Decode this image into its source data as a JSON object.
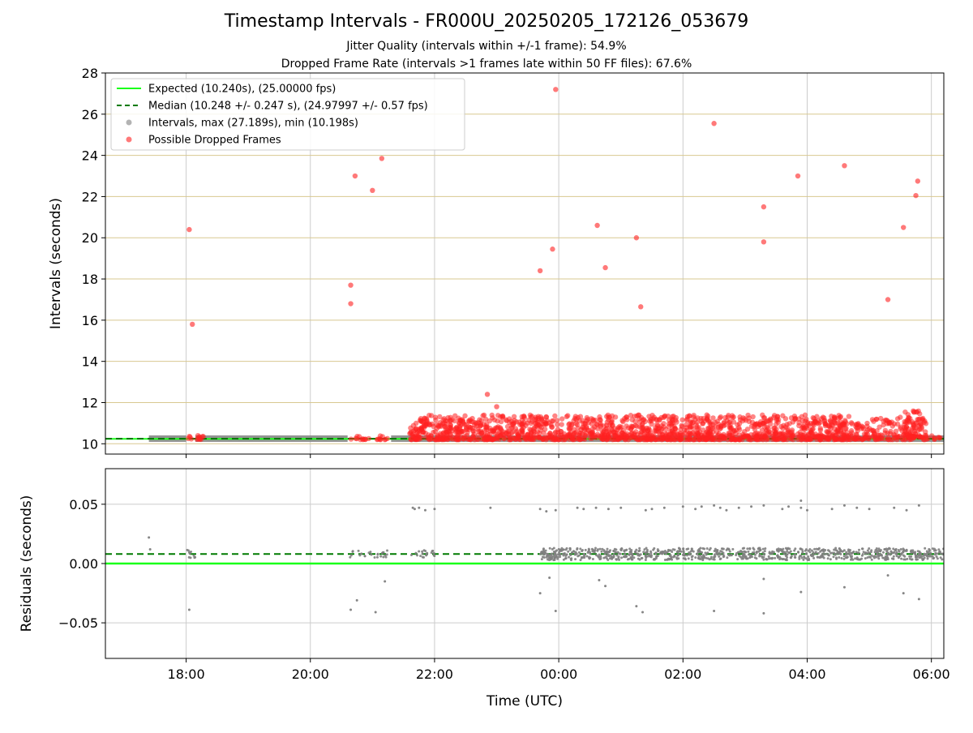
{
  "title": "Timestamp Intervals - FR000U_20250205_172126_053679",
  "subtitles": [
    "Jitter Quality (intervals within +/-1 frame): 54.9%",
    "Dropped Frame Rate (intervals >1 frames late within 50 FF files): 67.6%"
  ],
  "colors": {
    "expected": "#1aff1a",
    "median": "#007a00",
    "intervals": "#808080",
    "dropped": "#ff2020",
    "hgrid_top": "#d8c890",
    "grid": "#cccccc"
  },
  "chart_data": [
    {
      "type": "scatter",
      "ylabel": "Intervals (seconds)",
      "ylim": [
        9.5,
        28
      ],
      "yticks": [
        10,
        12,
        14,
        16,
        18,
        20,
        22,
        24,
        26,
        28
      ],
      "xlim_hours": [
        16.7,
        30.2
      ],
      "grid": true,
      "legend_position": "top-left",
      "legend": [
        "Expected (10.240s), (25.00000 fps)",
        "Median (10.248 +/- 0.247 s), (24.97997 +/- 0.57 fps)",
        "Intervals, max (27.189s), min (10.198s)",
        "Possible Dropped Frames"
      ],
      "expected_value": 10.24,
      "median_value": 10.248,
      "series": [
        {
          "name": "Intervals, max (27.189s), min (10.198s)",
          "kind": "baseline_band",
          "bands": [
            [
              17.4,
              18.0,
              10.25
            ],
            [
              18.15,
              20.6,
              10.25
            ],
            [
              21.3,
              30.2,
              10.25
            ]
          ]
        },
        {
          "name": "Possible Dropped Frames",
          "kind": "outliers",
          "points": [
            [
              18.05,
              20.4
            ],
            [
              18.1,
              15.8
            ],
            [
              20.65,
              17.7
            ],
            [
              20.65,
              16.8
            ],
            [
              20.72,
              23.0
            ],
            [
              21.0,
              22.3
            ],
            [
              21.15,
              23.85
            ],
            [
              22.85,
              12.4
            ],
            [
              23.0,
              11.8
            ],
            [
              23.7,
              18.4
            ],
            [
              23.9,
              19.45
            ],
            [
              23.95,
              27.2
            ],
            [
              24.62,
              20.6
            ],
            [
              24.75,
              18.55
            ],
            [
              25.25,
              20.0
            ],
            [
              25.32,
              16.65
            ],
            [
              26.5,
              25.55
            ],
            [
              27.3,
              21.5
            ],
            [
              27.3,
              19.8
            ],
            [
              27.85,
              23.0
            ],
            [
              28.6,
              23.5
            ],
            [
              29.3,
              17.0
            ],
            [
              29.55,
              20.5
            ],
            [
              29.75,
              22.05
            ],
            [
              29.78,
              22.75
            ]
          ],
          "dense_regions": [
            [
              18.0,
              18.3,
              10.2,
              10.4,
              14
            ],
            [
              20.6,
              20.95,
              10.2,
              10.4,
              12
            ],
            [
              21.0,
              21.3,
              10.2,
              10.4,
              10
            ],
            [
              21.6,
              28.75,
              10.2,
              11.4,
              1500
            ],
            [
              28.75,
              29.0,
              10.2,
              11.0,
              40
            ],
            [
              29.0,
              29.95,
              10.2,
              11.3,
              110
            ],
            [
              29.55,
              29.85,
              10.3,
              11.6,
              60
            ],
            [
              29.85,
              30.15,
              10.2,
              10.4,
              12
            ]
          ]
        }
      ]
    },
    {
      "type": "scatter",
      "xlabel": "Time (UTC)",
      "ylabel": "Residuals (seconds)",
      "ylim": [
        -0.08,
        0.08
      ],
      "yticks": [
        0.05,
        0.0,
        -0.05
      ],
      "ytick_labels": [
        "0.05",
        "0.00",
        "−0.05"
      ],
      "xticks_hours": [
        18,
        20,
        22,
        24,
        26,
        28,
        30
      ],
      "xtick_labels": [
        "18:00",
        "20:00",
        "22:00",
        "00:00",
        "02:00",
        "04:00",
        "06:00"
      ],
      "xlim_hours": [
        16.7,
        30.2
      ],
      "grid": true,
      "expected_value": 0.0,
      "median_value": 0.008,
      "series": [
        {
          "name": "Residuals",
          "kind": "residuals",
          "points": [
            [
              17.4,
              0.022
            ],
            [
              17.42,
              0.012
            ],
            [
              18.05,
              -0.039
            ],
            [
              20.65,
              -0.039
            ],
            [
              20.75,
              -0.031
            ],
            [
              21.05,
              -0.041
            ],
            [
              21.2,
              -0.015
            ],
            [
              21.65,
              0.047
            ],
            [
              21.68,
              0.046
            ],
            [
              21.75,
              0.047
            ],
            [
              21.85,
              0.045
            ],
            [
              22.0,
              0.046
            ],
            [
              22.9,
              0.047
            ],
            [
              23.7,
              0.046
            ],
            [
              23.8,
              0.044
            ],
            [
              23.95,
              0.045
            ],
            [
              24.3,
              0.047
            ],
            [
              24.4,
              0.046
            ],
            [
              24.6,
              0.047
            ],
            [
              24.8,
              0.046
            ],
            [
              25.0,
              0.047
            ],
            [
              25.4,
              0.045
            ],
            [
              25.5,
              0.046
            ],
            [
              25.7,
              0.047
            ],
            [
              26.0,
              0.048
            ],
            [
              26.2,
              0.046
            ],
            [
              26.3,
              0.048
            ],
            [
              26.5,
              0.049
            ],
            [
              26.6,
              0.047
            ],
            [
              26.7,
              0.045
            ],
            [
              26.9,
              0.047
            ],
            [
              27.1,
              0.048
            ],
            [
              27.3,
              0.049
            ],
            [
              27.6,
              0.046
            ],
            [
              27.7,
              0.048
            ],
            [
              27.9,
              0.047
            ],
            [
              28.0,
              0.045
            ],
            [
              28.4,
              0.046
            ],
            [
              28.6,
              0.049
            ],
            [
              28.8,
              0.047
            ],
            [
              29.0,
              0.046
            ],
            [
              29.4,
              0.047
            ],
            [
              29.6,
              0.045
            ],
            [
              29.8,
              0.049
            ],
            [
              23.7,
              -0.025
            ],
            [
              23.85,
              -0.012
            ],
            [
              23.95,
              -0.04
            ],
            [
              24.65,
              -0.014
            ],
            [
              24.75,
              -0.019
            ],
            [
              25.25,
              -0.036
            ],
            [
              25.35,
              -0.041
            ],
            [
              26.5,
              -0.04
            ],
            [
              27.3,
              -0.013
            ],
            [
              27.3,
              -0.042
            ],
            [
              27.9,
              -0.024
            ],
            [
              28.6,
              -0.02
            ],
            [
              29.3,
              -0.01
            ],
            [
              29.55,
              -0.025
            ],
            [
              29.8,
              -0.03
            ],
            [
              27.9,
              0.053
            ]
          ],
          "dense_regions": [
            [
              18.0,
              18.15,
              0.004,
              0.012,
              10
            ],
            [
              20.6,
              21.3,
              0.005,
              0.011,
              25
            ],
            [
              21.6,
              22.0,
              0.005,
              0.012,
              20
            ],
            [
              23.7,
              30.2,
              0.003,
              0.013,
              900
            ]
          ]
        }
      ]
    }
  ]
}
